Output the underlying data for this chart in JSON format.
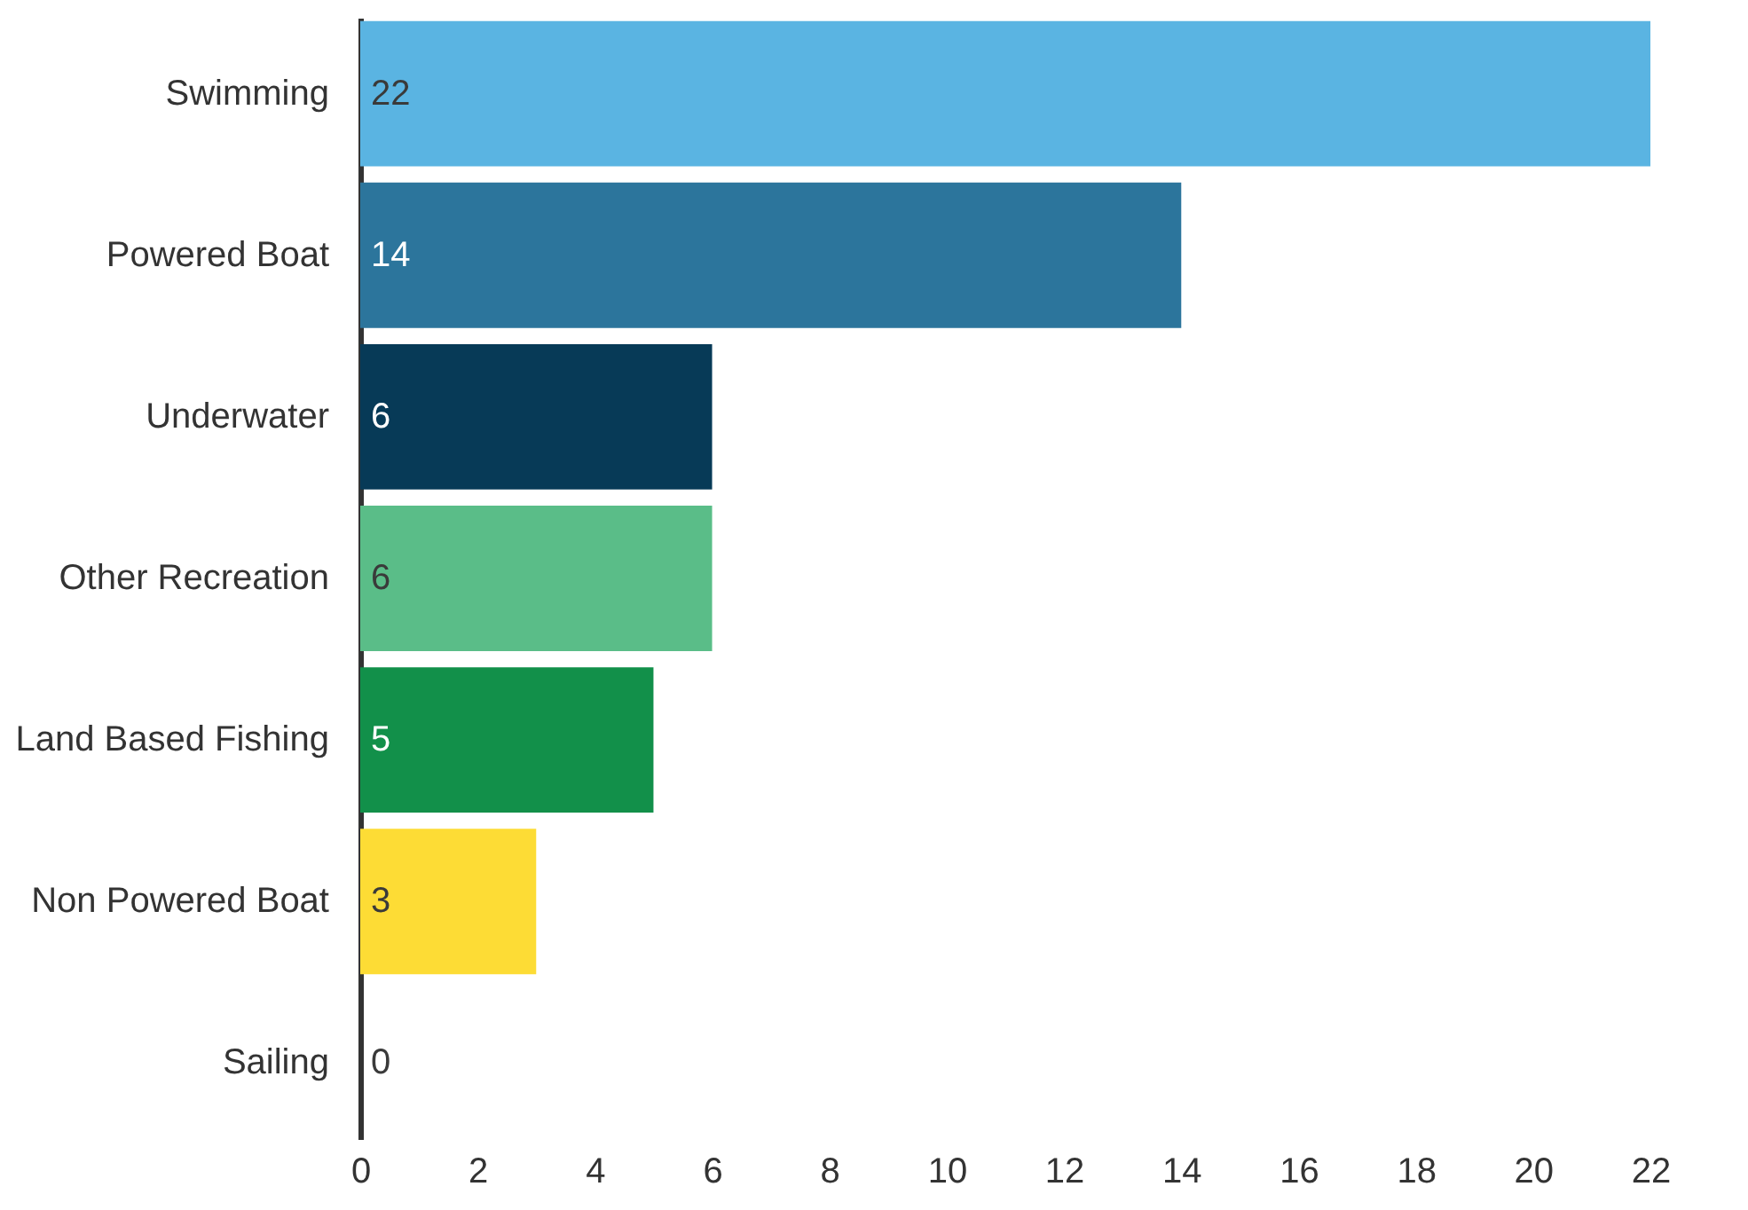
{
  "chart_data": {
    "type": "bar",
    "orientation": "horizontal",
    "categories": [
      "Swimming",
      "Powered Boat",
      "Underwater",
      "Other Recreation",
      "Land Based Fishing",
      "Non Powered Boat",
      "Sailing"
    ],
    "values": [
      22,
      14,
      6,
      6,
      5,
      3,
      0
    ],
    "colors": [
      "#5ab4e2",
      "#2c759c",
      "#073a57",
      "#5abd88",
      "#12904a",
      "#fddc35",
      "#b0b0b0"
    ],
    "xlim": [
      0,
      22
    ],
    "xticks": [
      0,
      2,
      4,
      6,
      8,
      10,
      12,
      14,
      16,
      18,
      20,
      22
    ],
    "data_labels": true,
    "grid": false
  }
}
